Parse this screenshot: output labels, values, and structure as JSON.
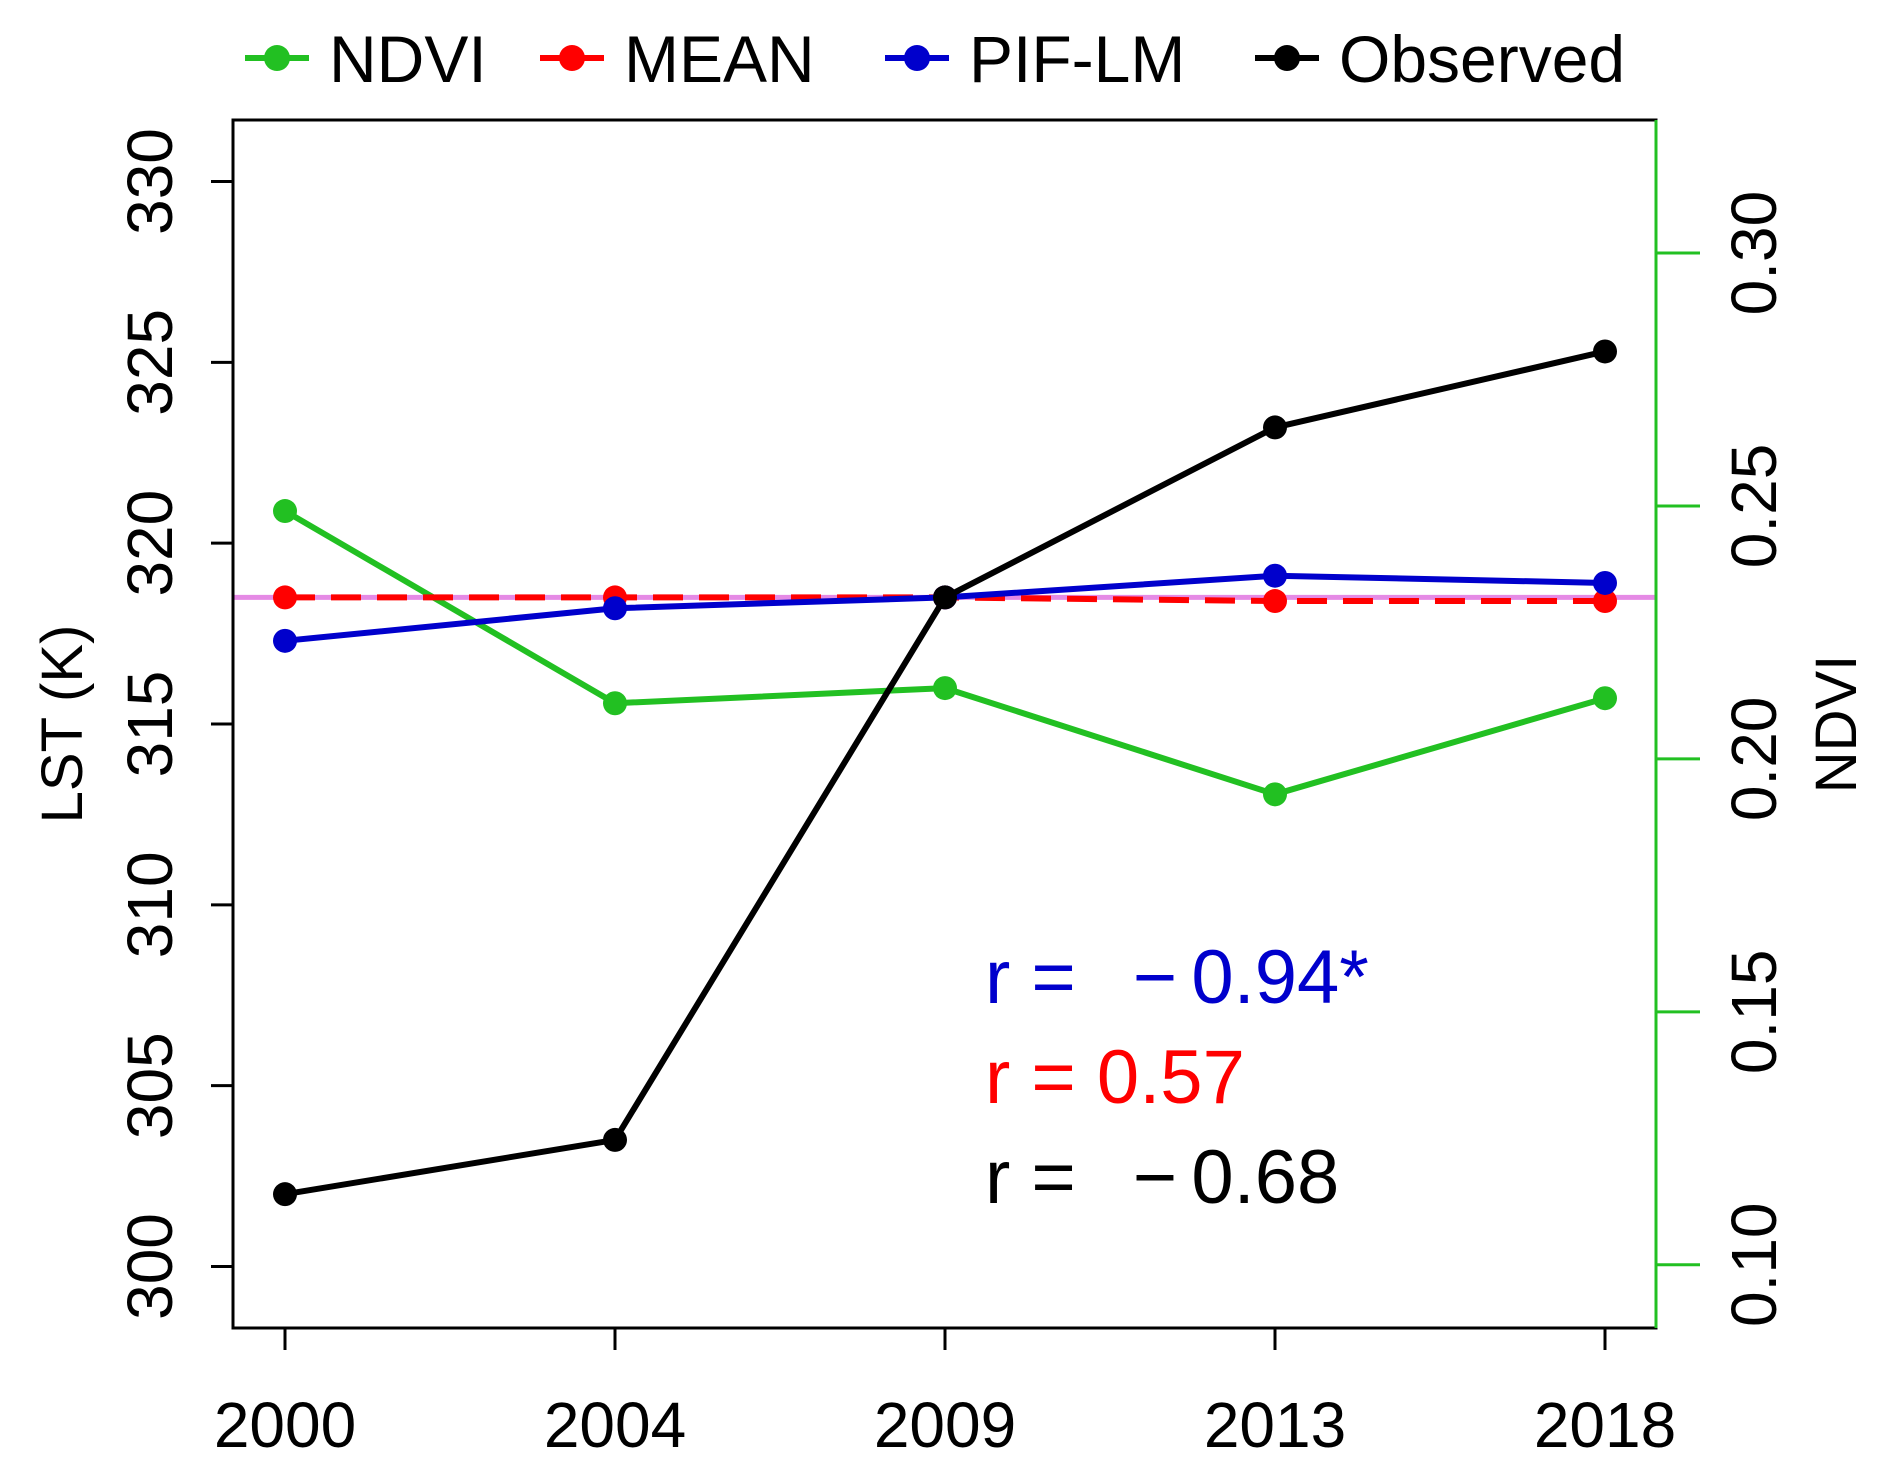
{
  "chart_data": {
    "type": "line",
    "categories": [
      "2000",
      "2004",
      "2009",
      "2013",
      "2018"
    ],
    "y_left": {
      "label": "LST (K)",
      "ylim": [
        298.3,
        331.7
      ],
      "ticks": [
        300,
        305,
        310,
        315,
        320,
        325,
        330
      ],
      "tick_labels": [
        "300",
        "305",
        "310",
        "315",
        "320",
        "325",
        "330"
      ]
    },
    "y_right": {
      "label": "NDVI",
      "ylim": [
        0.0875,
        0.3263
      ],
      "ticks": [
        0.1,
        0.15,
        0.2,
        0.25,
        0.3
      ],
      "tick_labels": [
        "0.10",
        "0.15",
        "0.20",
        "0.25",
        "0.30"
      ],
      "color": "#22c022"
    },
    "series": [
      {
        "name": "NDVI",
        "axis": "right",
        "color": "#22c022",
        "values": [
          0.249,
          0.211,
          0.214,
          0.193,
          0.212
        ]
      },
      {
        "name": "MEAN",
        "axis": "left",
        "color": "#ff0000",
        "dashed": true,
        "values": [
          318.5,
          318.5,
          318.5,
          318.4,
          318.4
        ]
      },
      {
        "name": "PIF-LM",
        "axis": "left",
        "color": "#0000cc",
        "values": [
          317.3,
          318.2,
          318.5,
          319.1,
          318.9
        ]
      },
      {
        "name": "Observed",
        "axis": "left",
        "color": "#000000",
        "values": [
          302.0,
          303.5,
          318.5,
          323.2,
          325.3
        ]
      }
    ],
    "reference_line": {
      "value": 318.5,
      "axis": "left",
      "color": "#e58ae5"
    },
    "legend": {
      "position": "top",
      "entries": [
        "NDVI",
        "MEAN",
        "PIF-LM",
        "Observed"
      ]
    },
    "annotations": [
      {
        "prefix": "r = ",
        "minus": "−",
        "number": "0.94*",
        "color": "#0000cc"
      },
      {
        "prefix": "r = ",
        "minus": "",
        "number": "0.57",
        "color": "#ff0000"
      },
      {
        "prefix": "r = ",
        "minus": "−",
        "number": "0.68",
        "color": "#000000"
      }
    ]
  }
}
